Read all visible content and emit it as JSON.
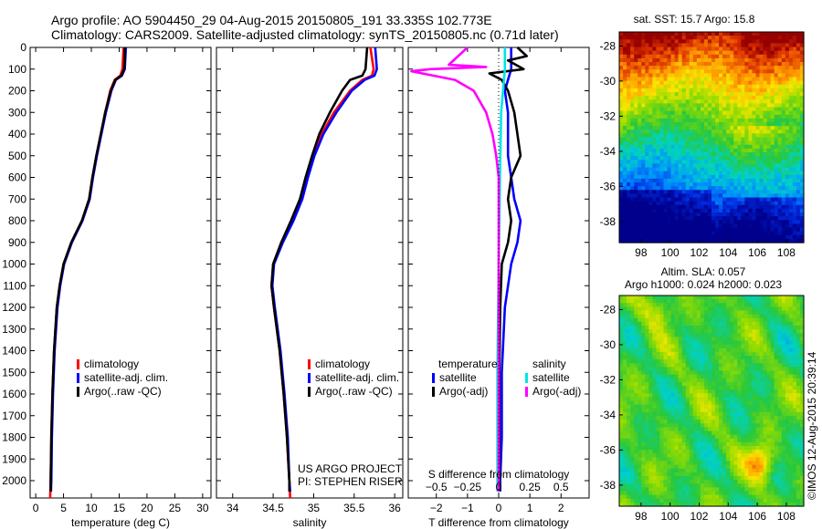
{
  "header": {
    "title_line1": "Argo profile: AO 5904450_29 04-Aug-2015 20150805_191 33.335S 102.773E",
    "title_line2": "Climatology: CARS2009. Satellite-adjusted climatology: synTS_20150805.nc (0.71d later)"
  },
  "side_label": "©IMOS 12-Aug-2015 20:39:14",
  "colors": {
    "climatology": "#ff0000",
    "satellite": "#0000ff",
    "argo": "#000000",
    "sat_s": "#00e5e5",
    "argo_s": "#ff00ff"
  },
  "chart_data": [
    {
      "type": "line",
      "name": "temperature",
      "xlabel": "temperature (deg C)",
      "ylabel": "",
      "xlim": [
        -1,
        31.5
      ],
      "ylim": [
        2080,
        0
      ],
      "xticks": [
        0,
        5,
        10,
        15,
        20,
        25,
        30
      ],
      "yticks": [
        0,
        100,
        200,
        300,
        400,
        500,
        600,
        700,
        800,
        900,
        1000,
        1100,
        1200,
        1300,
        1400,
        1500,
        1600,
        1700,
        1800,
        1900,
        2000
      ],
      "legend": [
        "climatology",
        "satellite-adj. clim.",
        "Argo(..raw -QC)"
      ],
      "series": [
        {
          "name": "climatology",
          "depth": [
            0,
            50,
            100,
            130,
            150,
            200,
            300,
            400,
            500,
            600,
            700,
            800,
            900,
            1000,
            1100,
            1200,
            1400,
            1600,
            1800,
            2000,
            2080
          ],
          "values": [
            15.8,
            15.7,
            15.6,
            15.2,
            14.2,
            13.4,
            12.5,
            11.7,
            10.9,
            10.2,
            9.6,
            8.3,
            6.4,
            5.0,
            4.3,
            3.8,
            3.3,
            3.0,
            2.8,
            2.7,
            2.6
          ]
        },
        {
          "name": "satellite-adj. clim.",
          "depth": [
            0,
            50,
            100,
            130,
            150,
            200,
            300,
            400,
            500,
            600,
            700,
            800,
            900,
            1000,
            1100,
            1200,
            1400,
            1600,
            1800,
            2000,
            2050
          ],
          "values": [
            16.2,
            16.1,
            16.0,
            15.5,
            14.4,
            13.6,
            12.6,
            11.8,
            11.0,
            10.3,
            9.7,
            8.4,
            6.5,
            5.1,
            4.4,
            3.9,
            3.4,
            3.1,
            2.9,
            2.8,
            2.75
          ]
        },
        {
          "name": "Argo(..raw -QC)",
          "depth": [
            0,
            50,
            100,
            130,
            150,
            200,
            300,
            400,
            500,
            600,
            700,
            800,
            900,
            1000,
            1100,
            1200,
            1400,
            1600,
            1800,
            2000,
            2050
          ],
          "values": [
            16.0,
            16.0,
            15.9,
            15.4,
            14.3,
            13.5,
            12.5,
            11.7,
            10.9,
            10.2,
            9.6,
            8.3,
            6.4,
            5.0,
            4.3,
            3.8,
            3.3,
            3.0,
            2.8,
            2.7,
            2.7
          ]
        }
      ]
    },
    {
      "type": "line",
      "name": "salinity",
      "xlabel": "salinity",
      "xlim": [
        33.8,
        36.1
      ],
      "ylim": [
        2080,
        0
      ],
      "xticks": [
        34,
        34.5,
        35,
        35.5,
        36
      ],
      "xticklabels": [
        "34",
        "34.5",
        "35",
        "35.5",
        "36"
      ],
      "legend": [
        "climatology",
        "satellite-adj. clim.",
        "Argo(..raw -QC)"
      ],
      "annotation": [
        "US ARGO PROJECT",
        "PI: STEPHEN RISER"
      ],
      "series": [
        {
          "name": "climatology",
          "depth": [
            0,
            50,
            100,
            130,
            150,
            200,
            300,
            400,
            500,
            600,
            700,
            800,
            900,
            1000,
            1100,
            1200,
            1400,
            1600,
            1800,
            2000,
            2080
          ],
          "values": [
            35.7,
            35.72,
            35.74,
            35.72,
            35.6,
            35.45,
            35.25,
            35.1,
            34.99,
            34.91,
            34.84,
            34.73,
            34.6,
            34.5,
            34.48,
            34.51,
            34.58,
            34.63,
            34.67,
            34.7,
            34.71
          ]
        },
        {
          "name": "satellite-adj. clim.",
          "depth": [
            0,
            50,
            100,
            130,
            150,
            200,
            300,
            400,
            500,
            600,
            700,
            800,
            900,
            1000,
            1100,
            1200,
            1400,
            1600,
            1800,
            2000,
            2050
          ],
          "values": [
            35.76,
            35.77,
            35.78,
            35.75,
            35.63,
            35.47,
            35.28,
            35.12,
            35.01,
            34.93,
            34.86,
            34.75,
            34.62,
            34.51,
            34.49,
            34.52,
            34.59,
            34.64,
            34.68,
            34.7,
            34.71
          ]
        },
        {
          "name": "Argo(..raw -QC)",
          "depth": [
            0,
            50,
            100,
            130,
            150,
            200,
            300,
            400,
            500,
            600,
            700,
            800,
            900,
            1000,
            1100,
            1200,
            1400,
            1600,
            1800,
            2000,
            2050
          ],
          "values": [
            35.66,
            35.65,
            35.64,
            35.6,
            35.45,
            35.35,
            35.2,
            35.07,
            34.98,
            34.9,
            34.83,
            34.72,
            34.6,
            34.5,
            34.48,
            34.51,
            34.58,
            34.63,
            34.67,
            34.7,
            34.7
          ]
        }
      ]
    },
    {
      "type": "line",
      "name": "difference",
      "xlabel": "T difference from climatology",
      "xlabel2": "S difference from climatology",
      "xlim": [
        -2.9,
        2.9
      ],
      "ylim": [
        2080,
        0
      ],
      "xticks": [
        -2,
        -1,
        0,
        1,
        2
      ],
      "xticklabels": [
        "−2",
        "−1",
        "0",
        "1",
        "2"
      ],
      "s_xticklabels": [
        "−0.5",
        "−0.25",
        "0",
        "0.25",
        "0.5"
      ],
      "legend_temperature": [
        "temperature",
        "satellite",
        "Argo(-adj)"
      ],
      "legend_salinity": [
        "salinity",
        "satellite",
        "Argo(-adj)"
      ],
      "series": [
        {
          "name": "satellite",
          "depth": [
            0,
            50,
            100,
            150,
            200,
            300,
            400,
            500,
            600,
            700,
            800,
            900,
            1000,
            1200,
            1500,
            1800,
            2000,
            2050
          ],
          "values": [
            0.4,
            0.4,
            0.4,
            0.3,
            0.2,
            0.3,
            0.3,
            0.3,
            0.4,
            0.5,
            0.7,
            0.6,
            0.4,
            0.2,
            0.1,
            0.1,
            0.05,
            0.05
          ]
        },
        {
          "name": "Argo(-adj)",
          "depth": [
            0,
            40,
            60,
            100,
            120,
            150,
            200,
            300,
            400,
            500,
            600,
            700,
            800,
            900,
            1000,
            1200,
            1500,
            1800,
            2000,
            2050
          ],
          "values": [
            0.6,
            0.9,
            0.3,
            0.8,
            -0.3,
            0.1,
            0.3,
            0.5,
            0.6,
            0.7,
            0.4,
            0.3,
            0.4,
            0.3,
            0.1,
            0.05,
            0.02,
            0.02,
            0.02,
            0.02
          ]
        },
        {
          "name": "satellite S",
          "depth": [
            0,
            100,
            300,
            600,
            1000,
            1500,
            2000,
            2050
          ],
          "values": [
            0.05,
            0.05,
            0.02,
            0.01,
            0.0,
            -0.01,
            -0.01,
            -0.01
          ]
        },
        {
          "name": "Argo(-adj) S",
          "depth": [
            0,
            80,
            90,
            100,
            110,
            150,
            200,
            300,
            400,
            500,
            600,
            700,
            800,
            900,
            1000,
            1200,
            1500,
            1800,
            2000,
            2050
          ],
          "values": [
            -0.25,
            -0.4,
            -0.1,
            -0.55,
            -0.7,
            -0.35,
            -0.2,
            -0.1,
            -0.05,
            -0.02,
            0.0,
            0.0,
            0.0,
            0.0,
            0.0,
            0.0,
            0.0,
            0.0,
            0.0,
            0.0
          ]
        }
      ]
    },
    {
      "type": "heatmap",
      "name": "sst-map",
      "title": "sat. SST: 15.7 Argo: 15.8",
      "xlim": [
        96.5,
        109.2
      ],
      "ylim": [
        -39.2,
        -27.2
      ],
      "xticks": [
        98,
        100,
        102,
        104,
        106,
        108
      ],
      "yticks": [
        -28,
        -30,
        -32,
        -34,
        -36,
        -38
      ]
    },
    {
      "type": "heatmap",
      "name": "sla-map",
      "title_line1": "Altim. SLA: 0.057",
      "title_line2": "Argo h1000: 0.024 h2000: 0.023",
      "xlim": [
        96.5,
        109.2
      ],
      "ylim": [
        -39.2,
        -27.2
      ],
      "xticks": [
        98,
        100,
        102,
        104,
        106,
        108
      ],
      "yticks": [
        -28,
        -30,
        -32,
        -34,
        -36,
        -38
      ]
    }
  ]
}
